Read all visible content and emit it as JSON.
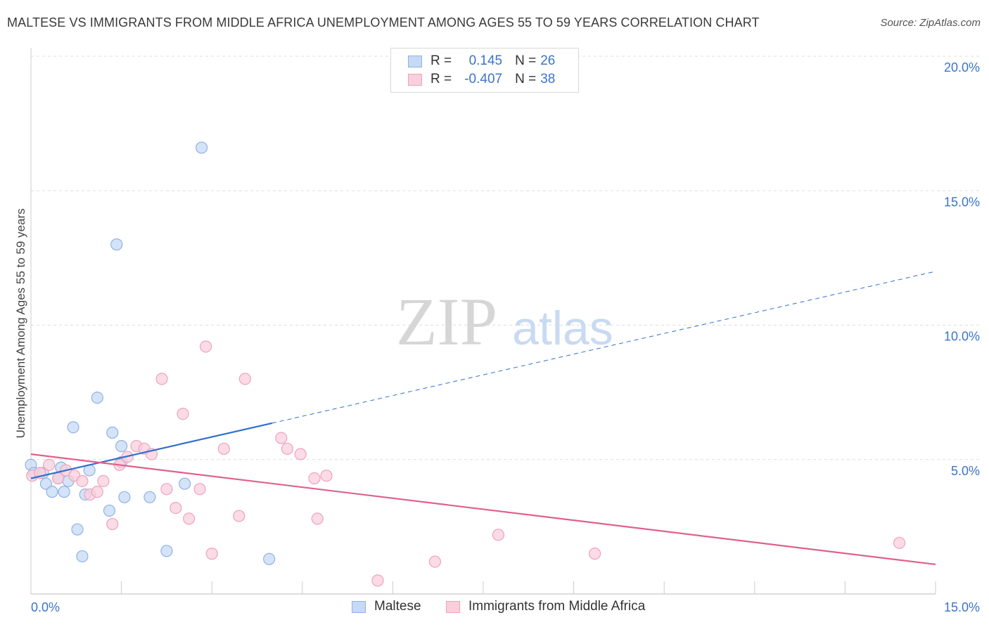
{
  "header": {
    "title": "MALTESE VS IMMIGRANTS FROM MIDDLE AFRICA UNEMPLOYMENT AMONG AGES 55 TO 59 YEARS CORRELATION CHART",
    "source": "Source: ZipAtlas.com"
  },
  "watermark": {
    "zip": "ZIP",
    "atlas": "atlas"
  },
  "legend": {
    "r_label": "R =",
    "n_label": "N =",
    "maltese": {
      "r": "0.145",
      "n": "26"
    },
    "immigrants": {
      "r": "-0.407",
      "n": "38"
    }
  },
  "colors": {
    "maltese_fill": "#c6d9f5",
    "maltese_stroke": "#8fb2e3",
    "maltese_line": "#2f6fce",
    "immigrants_fill": "#f9cfdc",
    "immigrants_stroke": "#eea3bb",
    "immigrants_line": "#e0608c",
    "tick_label": "#3b74c8",
    "grid": "#dddddd"
  },
  "chart_data": {
    "type": "scatter",
    "title": "MALTESE VS IMMIGRANTS FROM MIDDLE AFRICA UNEMPLOYMENT AMONG AGES 55 TO 59 YEARS CORRELATION CHART",
    "xlabel": "",
    "ylabel": "Unemployment Among Ages 55 to 59 years",
    "xlim": [
      0,
      15
    ],
    "ylim": [
      0,
      20
    ],
    "x_tick_labels": [
      "0.0%",
      "15.0%"
    ],
    "y_ticks": [
      5,
      10,
      15,
      20
    ],
    "y_tick_labels": [
      "5.0%",
      "10.0%",
      "15.0%",
      "20.0%"
    ],
    "grid": true,
    "series": [
      {
        "name": "Maltese",
        "points": [
          {
            "x": 0.0,
            "y": 4.8
          },
          {
            "x": 0.05,
            "y": 4.5
          },
          {
            "x": 0.2,
            "y": 4.5
          },
          {
            "x": 0.25,
            "y": 4.1
          },
          {
            "x": 0.35,
            "y": 3.8
          },
          {
            "x": 0.45,
            "y": 4.3
          },
          {
            "x": 0.5,
            "y": 4.7
          },
          {
            "x": 0.55,
            "y": 3.8
          },
          {
            "x": 0.62,
            "y": 4.2
          },
          {
            "x": 0.7,
            "y": 6.2
          },
          {
            "x": 0.77,
            "y": 2.4
          },
          {
            "x": 0.85,
            "y": 1.4
          },
          {
            "x": 0.9,
            "y": 3.7
          },
          {
            "x": 0.97,
            "y": 4.6
          },
          {
            "x": 1.1,
            "y": 7.3
          },
          {
            "x": 1.3,
            "y": 3.1
          },
          {
            "x": 1.35,
            "y": 6.0
          },
          {
            "x": 1.42,
            "y": 13.0
          },
          {
            "x": 1.5,
            "y": 5.5
          },
          {
            "x": 1.5,
            "y": 4.9
          },
          {
            "x": 1.55,
            "y": 3.6
          },
          {
            "x": 1.97,
            "y": 3.6
          },
          {
            "x": 2.25,
            "y": 1.6
          },
          {
            "x": 2.55,
            "y": 4.1
          },
          {
            "x": 2.83,
            "y": 16.6
          },
          {
            "x": 3.95,
            "y": 1.3
          }
        ],
        "trend": {
          "x0": 0,
          "y0": 4.3,
          "x_solid_end": 4.0,
          "x1": 15,
          "y1": 12.0
        }
      },
      {
        "name": "Immigrants from Middle Africa",
        "points": [
          {
            "x": 0.02,
            "y": 4.4
          },
          {
            "x": 0.15,
            "y": 4.5
          },
          {
            "x": 0.3,
            "y": 4.8
          },
          {
            "x": 0.45,
            "y": 4.3
          },
          {
            "x": 0.58,
            "y": 4.6
          },
          {
            "x": 0.72,
            "y": 4.4
          },
          {
            "x": 0.85,
            "y": 4.2
          },
          {
            "x": 0.98,
            "y": 3.7
          },
          {
            "x": 1.1,
            "y": 3.8
          },
          {
            "x": 1.2,
            "y": 4.2
          },
          {
            "x": 1.35,
            "y": 2.6
          },
          {
            "x": 1.47,
            "y": 4.8
          },
          {
            "x": 1.6,
            "y": 5.1
          },
          {
            "x": 1.75,
            "y": 5.5
          },
          {
            "x": 1.88,
            "y": 5.4
          },
          {
            "x": 2.0,
            "y": 5.2
          },
          {
            "x": 2.17,
            "y": 8.0
          },
          {
            "x": 2.25,
            "y": 3.9
          },
          {
            "x": 2.4,
            "y": 3.2
          },
          {
            "x": 2.52,
            "y": 6.7
          },
          {
            "x": 2.62,
            "y": 2.8
          },
          {
            "x": 2.8,
            "y": 3.9
          },
          {
            "x": 2.9,
            "y": 9.2
          },
          {
            "x": 3.0,
            "y": 1.5
          },
          {
            "x": 3.2,
            "y": 5.4
          },
          {
            "x": 3.45,
            "y": 2.9
          },
          {
            "x": 3.55,
            "y": 8.0
          },
          {
            "x": 4.15,
            "y": 5.8
          },
          {
            "x": 4.25,
            "y": 5.4
          },
          {
            "x": 4.47,
            "y": 5.2
          },
          {
            "x": 4.7,
            "y": 4.3
          },
          {
            "x": 4.75,
            "y": 2.8
          },
          {
            "x": 4.9,
            "y": 4.4
          },
          {
            "x": 5.75,
            "y": 0.5
          },
          {
            "x": 6.7,
            "y": 1.2
          },
          {
            "x": 7.75,
            "y": 2.2
          },
          {
            "x": 9.35,
            "y": 1.5
          },
          {
            "x": 14.4,
            "y": 1.9
          }
        ],
        "trend": {
          "x0": 0,
          "y0": 5.2,
          "x1": 15,
          "y1": 1.1
        }
      }
    ]
  },
  "bottom_legend": {
    "maltese": "Maltese",
    "immigrants": "Immigrants from Middle Africa"
  }
}
